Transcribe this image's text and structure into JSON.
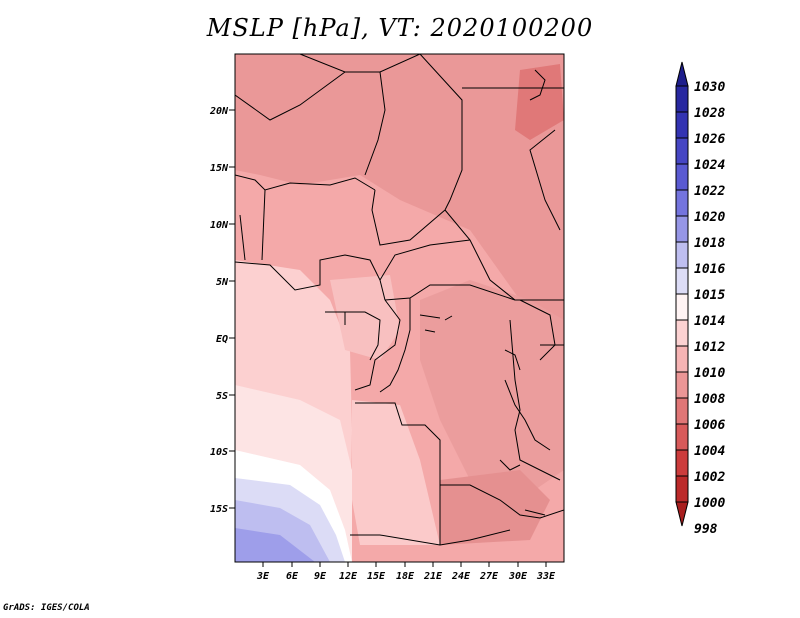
{
  "title": "MSLP [hPa], VT: 2020100200",
  "credit": "GrADS: IGES/COLA",
  "map": {
    "y_axis_labels": [
      "20N",
      "15N",
      "10N",
      "5N",
      "EQ",
      "5S",
      "10S",
      "15S"
    ],
    "x_axis_labels": [
      "3E",
      "6E",
      "9E",
      "12E",
      "15E",
      "18E",
      "21E",
      "24E",
      "27E",
      "30E",
      "33E"
    ]
  },
  "colorbar": {
    "labels": [
      "1030",
      "1028",
      "1026",
      "1024",
      "1022",
      "1020",
      "1018",
      "1016",
      "1015",
      "1014",
      "1012",
      "1010",
      "1008",
      "1006",
      "1004",
      "1002",
      "1000",
      "998"
    ],
    "colors": [
      "#1e1e8c",
      "#2828a0",
      "#3333b2",
      "#4646c4",
      "#5a5ad2",
      "#7474de",
      "#9696e6",
      "#bebef0",
      "#dcdcf6",
      "#fff4f4",
      "#fcd2d2",
      "#f6b4b4",
      "#eb9696",
      "#e07676",
      "#d85a5a",
      "#cc3c3c",
      "#bc2a2a",
      "#a81e1e"
    ]
  }
}
